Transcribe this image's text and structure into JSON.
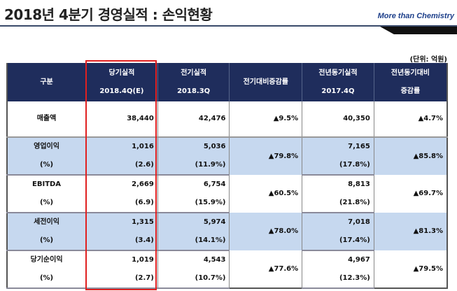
{
  "title": "2018년 4분기 경영실적 : 손익현황",
  "slogan": "More than Chemistry",
  "unit": "(단위: 억원)",
  "headers": [
    {
      "l1": "구분",
      "l2": ""
    },
    {
      "l1": "당기실적",
      "l2": "2018.4Q(E)"
    },
    {
      "l1": "전기실적",
      "l2": "2018.3Q"
    },
    {
      "l1": "전기대비증감률",
      "l2": ""
    },
    {
      "l1": "전년동기실적",
      "l2": "2017.4Q"
    },
    {
      "l1": "전년동기대비",
      "l2": "증감률"
    }
  ],
  "revenue": {
    "label": "매출액",
    "cur": "38,440",
    "prev": "42,476",
    "qoq": "▲9.5%",
    "yoy_val": "40,350",
    "yoy": "▲4.7%"
  },
  "rows": [
    {
      "label": "영업이익",
      "pct_label": "(%)",
      "cur": "1,016",
      "cur_pct": "(2.6)",
      "prev": "5,036",
      "prev_pct": "(11.9%)",
      "qoq": "▲79.8%",
      "ly": "7,165",
      "ly_pct": "(17.8%)",
      "yoy": "▲85.8%"
    },
    {
      "label": "EBITDA",
      "pct_label": "(%)",
      "cur": "2,669",
      "cur_pct": "(6.9)",
      "prev": "6,754",
      "prev_pct": "(15.9%)",
      "qoq": "▲60.5%",
      "ly": "8,813",
      "ly_pct": "(21.8%)",
      "yoy": "▲69.7%"
    },
    {
      "label": "세전이익",
      "pct_label": "(%)",
      "cur": "1,315",
      "cur_pct": "(3.4)",
      "prev": "5,974",
      "prev_pct": "(14.1%)",
      "qoq": "▲78.0%",
      "ly": "7,018",
      "ly_pct": "(17.4%)",
      "yoy": "▲81.3%"
    },
    {
      "label": "당기순이익",
      "pct_label": "(%)",
      "cur": "1,019",
      "cur_pct": "(2.7)",
      "prev": "4,543",
      "prev_pct": "(10.7%)",
      "qoq": "▲77.6%",
      "ly": "4,967",
      "ly_pct": "(12.3%)",
      "yoy": "▲79.5%"
    }
  ]
}
